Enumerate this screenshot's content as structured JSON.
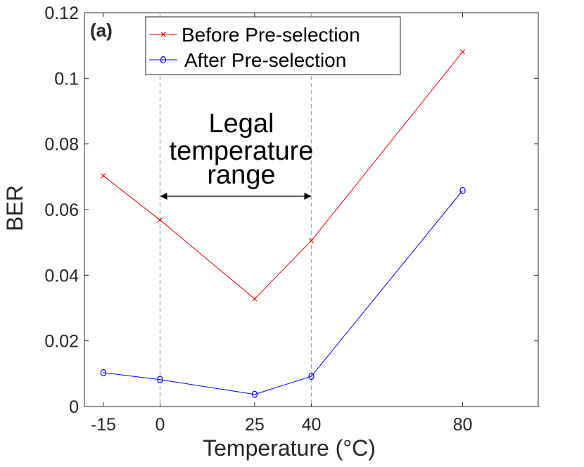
{
  "chart_data": {
    "type": "line",
    "title": "",
    "panel_label": "(a)",
    "xlabel": "Temperature (°C)",
    "ylabel": "BER",
    "xlim": [
      -20,
      100
    ],
    "ylim": [
      0,
      0.12
    ],
    "xticks": [
      -15,
      0,
      25,
      40,
      80
    ],
    "xtick_labels": [
      "-15",
      "0",
      "25",
      "40",
      "80"
    ],
    "yticks": [
      0,
      0.02,
      0.04,
      0.06,
      0.08,
      0.1,
      0.12
    ],
    "ytick_labels": [
      "0",
      "0.02",
      "0.04",
      "0.06",
      "0.08",
      "0.1",
      "0.12"
    ],
    "grid": false,
    "legend_position": "top",
    "x": [
      -15,
      0,
      25,
      40,
      80
    ],
    "series": [
      {
        "name": "Before Pre-selection",
        "values": [
          0.0703,
          0.0568,
          0.0328,
          0.0505,
          0.1081
        ],
        "color": "#ff0000",
        "marker": "x"
      },
      {
        "name": "After Pre-selection",
        "values": [
          0.0103,
          0.0082,
          0.0037,
          0.0092,
          0.0658
        ],
        "color": "#0000ff",
        "marker": "o"
      }
    ],
    "annotation": {
      "lines": [
        "Legal",
        "temperature",
        "range"
      ],
      "range": [
        0,
        40
      ],
      "reference_line_color": "#7fb6d6"
    }
  }
}
